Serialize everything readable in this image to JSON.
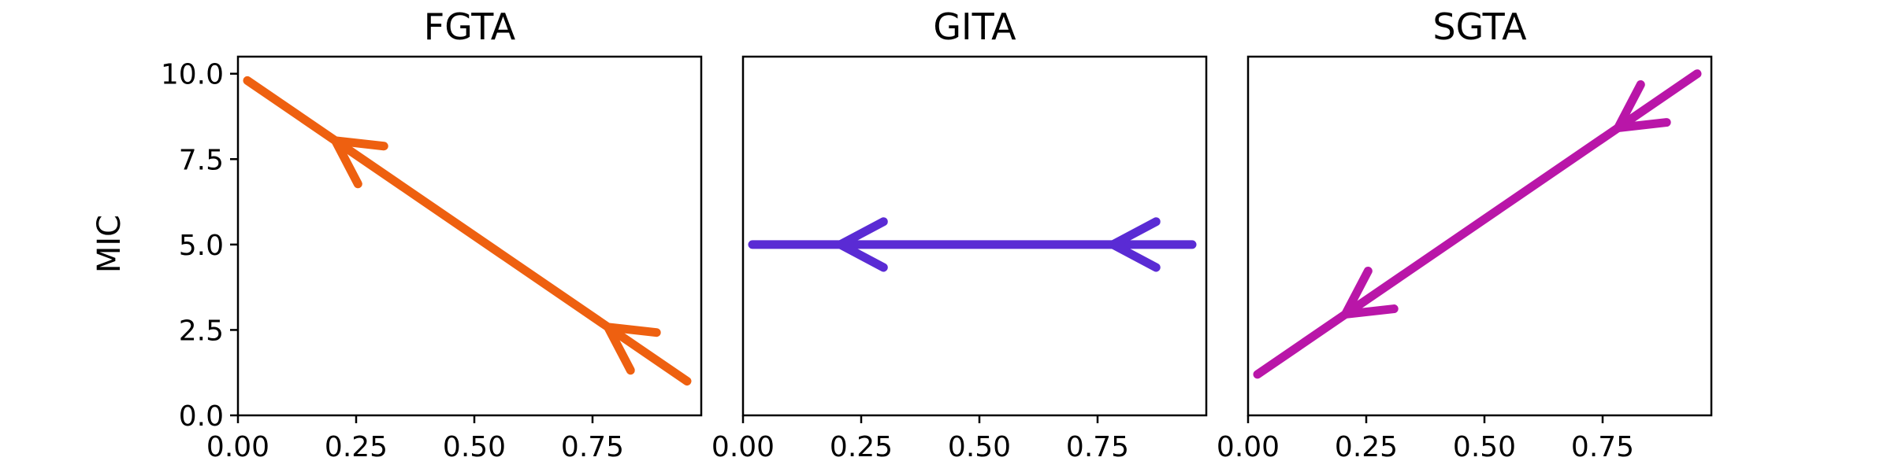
{
  "figure": {
    "ylabel": "MIC"
  },
  "chart_data": [
    {
      "type": "line",
      "title": "FGTA",
      "xlabel": "",
      "ylabel": "MIC",
      "xlim": [
        0.0,
        0.98
      ],
      "ylim": [
        0.0,
        10.5
      ],
      "xticks": [
        "0.00",
        "0.25",
        "0.50",
        "0.75"
      ],
      "xtick_values": [
        0.0,
        0.25,
        0.5,
        0.75
      ],
      "yticks": [
        "0.0",
        "2.5",
        "5.0",
        "7.5",
        "10.0"
      ],
      "ytick_values": [
        0.0,
        2.5,
        5.0,
        7.5,
        10.0
      ],
      "show_yticklabels": true,
      "grid": false,
      "series": [
        {
          "color": "#ee6010",
          "x": [
            0.02,
            0.95
          ],
          "y": [
            9.8,
            1.0
          ],
          "arrows_at": [
            0.2,
            0.82
          ],
          "direction": "backward"
        }
      ]
    },
    {
      "type": "line",
      "title": "GITA",
      "xlabel": "",
      "ylabel": "",
      "xlim": [
        0.0,
        0.98
      ],
      "ylim": [
        0.0,
        10.5
      ],
      "xticks": [
        "0.00",
        "0.25",
        "0.50",
        "0.75"
      ],
      "xtick_values": [
        0.0,
        0.25,
        0.5,
        0.75
      ],
      "yticks": [],
      "ytick_values": [],
      "show_yticklabels": false,
      "grid": false,
      "series": [
        {
          "color": "#5a2bd4",
          "x": [
            0.02,
            0.95
          ],
          "y": [
            5.0,
            5.0
          ],
          "arrows_at": [
            0.2,
            0.82
          ],
          "direction": "backward"
        }
      ]
    },
    {
      "type": "line",
      "title": "SGTA",
      "xlabel": "",
      "ylabel": "",
      "xlim": [
        0.0,
        0.98
      ],
      "ylim": [
        0.0,
        10.5
      ],
      "xticks": [
        "0.00",
        "0.25",
        "0.50",
        "0.75"
      ],
      "xtick_values": [
        0.0,
        0.25,
        0.5,
        0.75
      ],
      "yticks": [],
      "ytick_values": [],
      "show_yticklabels": false,
      "grid": false,
      "series": [
        {
          "color": "#b916a8",
          "x": [
            0.02,
            0.95
          ],
          "y": [
            1.2,
            10.0
          ],
          "arrows_at": [
            0.2,
            0.82
          ],
          "direction": "backward"
        }
      ]
    }
  ]
}
